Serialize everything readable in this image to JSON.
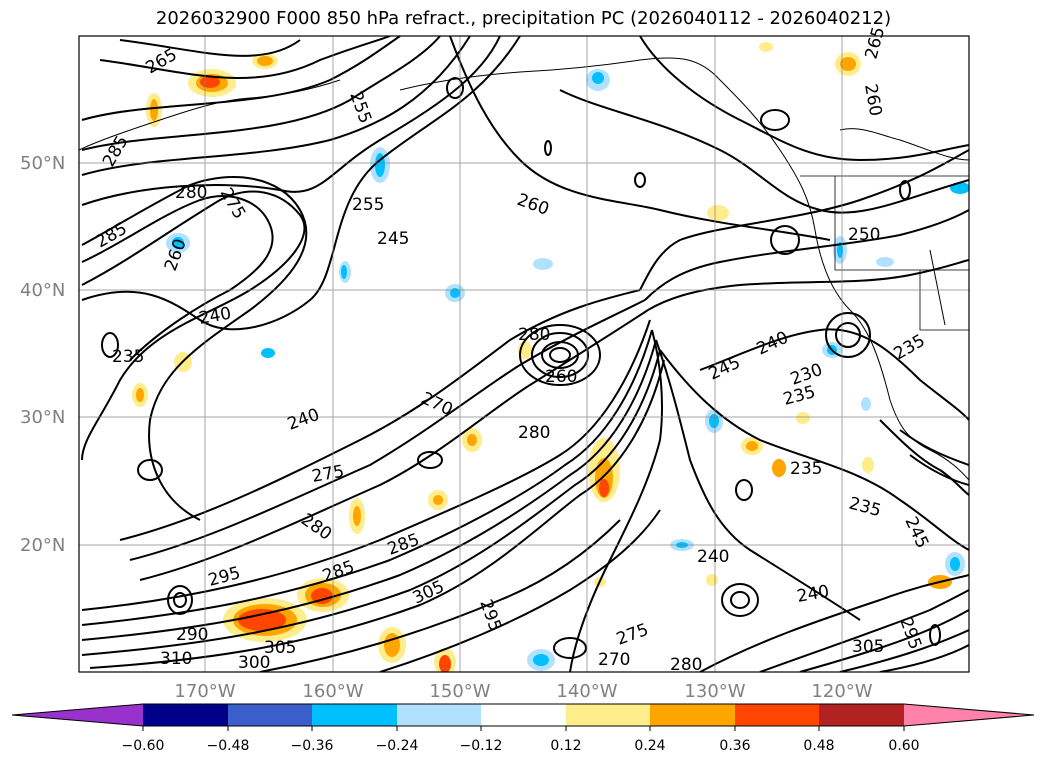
{
  "title": "2026032900 F000 850 hPa refract., precipitation PC (2026040112 - 2026040212)",
  "map": {
    "lat_ticks": [
      "50°N",
      "40°N",
      "30°N",
      "20°N"
    ],
    "lon_ticks": [
      "170°W",
      "160°W",
      "150°W",
      "140°W",
      "130°W",
      "120°W"
    ],
    "contour_labels": [
      {
        "text": "265"
      },
      {
        "text": "255"
      },
      {
        "text": "285"
      },
      {
        "text": "280"
      },
      {
        "text": "275"
      },
      {
        "text": "285"
      },
      {
        "text": "260"
      },
      {
        "text": "255"
      },
      {
        "text": "245"
      },
      {
        "text": "260"
      },
      {
        "text": "265"
      },
      {
        "text": "260"
      },
      {
        "text": "250"
      },
      {
        "text": "240"
      },
      {
        "text": "235"
      },
      {
        "text": "280"
      },
      {
        "text": "260"
      },
      {
        "text": "270"
      },
      {
        "text": "240"
      },
      {
        "text": "280"
      },
      {
        "text": "245"
      },
      {
        "text": "240"
      },
      {
        "text": "230"
      },
      {
        "text": "235"
      },
      {
        "text": "235"
      },
      {
        "text": "275"
      },
      {
        "text": "280"
      },
      {
        "text": "285"
      },
      {
        "text": "235"
      },
      {
        "text": "235"
      },
      {
        "text": "245"
      },
      {
        "text": "240"
      },
      {
        "text": "240"
      },
      {
        "text": "295"
      },
      {
        "text": "285"
      },
      {
        "text": "305"
      },
      {
        "text": "295"
      },
      {
        "text": "290"
      },
      {
        "text": "310"
      },
      {
        "text": "300"
      },
      {
        "text": "305"
      },
      {
        "text": "270"
      },
      {
        "text": "280"
      },
      {
        "text": "275"
      },
      {
        "text": "305"
      },
      {
        "text": "295"
      }
    ]
  },
  "colorbar": {
    "colors": [
      "#9932cc",
      "#00008b",
      "#3a5fcd",
      "#00bfff",
      "#b0e2ff",
      "#ffffff",
      "#ffec8b",
      "#ffa500",
      "#ff4500",
      "#b22222",
      "#ff82ab"
    ],
    "tick_labels": [
      "−0.60",
      "−0.48",
      "−0.36",
      "−0.24",
      "−0.12",
      "0.12",
      "0.24",
      "0.36",
      "0.48",
      "0.60"
    ]
  }
}
